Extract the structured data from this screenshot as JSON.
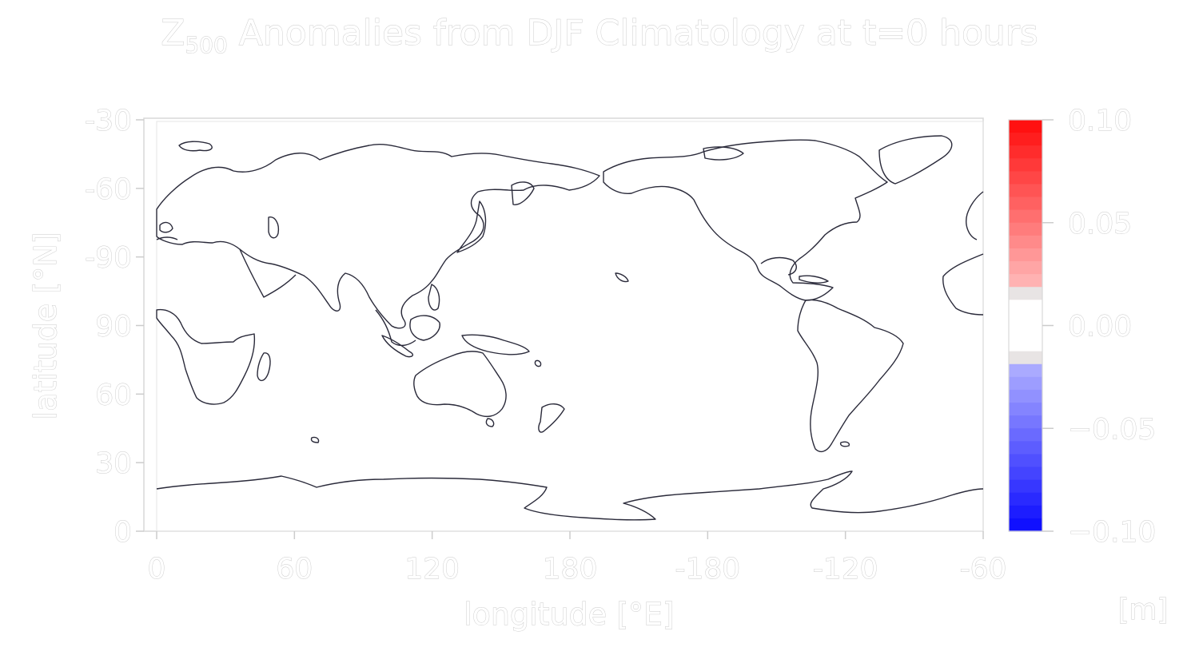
{
  "chart_data": {
    "type": "heatmap",
    "title_main": "Z",
    "title_sub": "500",
    "title_rest": " Anomalies from DJF Climatology at t=0 hours",
    "xlabel": "longitude [°E]",
    "ylabel": "latitude [°N]",
    "x_ticks": [
      "0",
      "60",
      "120",
      "180",
      "-180",
      "-120",
      "-60"
    ],
    "y_ticks": [
      "-30",
      "-60",
      "-90",
      "90",
      "60",
      "30",
      "0"
    ],
    "x_range": [
      0,
      360
    ],
    "y_range": [
      -90,
      90
    ],
    "grid": false,
    "field_values": "all 0.00 (no anomaly shown)",
    "colorbar": {
      "ticks": [
        "0.10",
        "0.05",
        "0.00",
        "−0.05",
        "−0.10"
      ],
      "tick_values": [
        0.1,
        0.05,
        0.0,
        -0.05,
        -0.1
      ],
      "range": [
        -0.1,
        0.1
      ],
      "unit": "[m]",
      "colormap": "blue-white-red",
      "neutral_band": [
        -0.01,
        0.01
      ]
    },
    "colors": {
      "max": "#ff0000",
      "min": "#0000ff",
      "neutral": "#ffffff",
      "near_neutral": "#e8e4e4",
      "frame": "#d8d8d8"
    },
    "overlay": "coastlines"
  }
}
